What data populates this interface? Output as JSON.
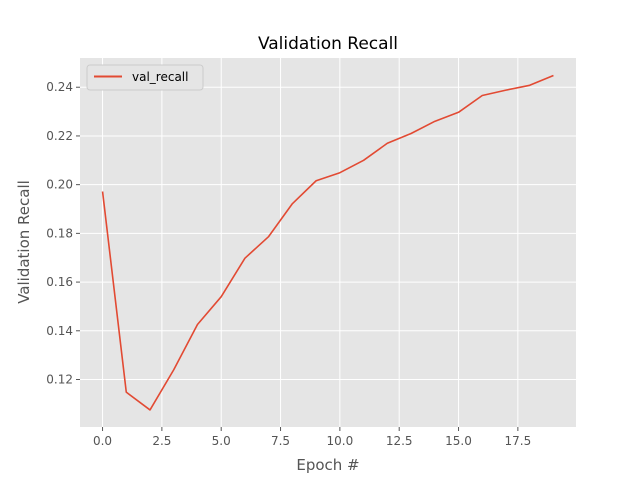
{
  "chart_data": {
    "type": "line",
    "title": "Validation Recall",
    "xlabel": "Epoch #",
    "ylabel": "Validation Recall",
    "xlim": [
      -0.95,
      19.95
    ],
    "ylim": [
      0.1005,
      0.252
    ],
    "x_ticks": [
      0.0,
      2.5,
      5.0,
      7.5,
      10.0,
      12.5,
      15.0,
      17.5
    ],
    "x_tick_labels": [
      "0.0",
      "2.5",
      "5.0",
      "7.5",
      "10.0",
      "12.5",
      "15.0",
      "17.5"
    ],
    "y_ticks": [
      0.12,
      0.14,
      0.16,
      0.18,
      0.2,
      0.22,
      0.24
    ],
    "y_tick_labels": [
      "0.12",
      "0.14",
      "0.16",
      "0.18",
      "0.20",
      "0.22",
      "0.24"
    ],
    "grid": true,
    "legend_position": "top-left",
    "background_color": "#e5e5e5",
    "series": [
      {
        "name": "val_recall",
        "color": "#e24a33",
        "x": [
          0,
          1,
          2,
          3,
          4,
          5,
          6,
          7,
          8,
          9,
          10,
          11,
          12,
          13,
          14,
          15,
          16,
          17,
          18,
          19
        ],
        "values": [
          0.1972,
          0.1148,
          0.1075,
          0.124,
          0.1426,
          0.154,
          0.1698,
          0.1787,
          0.1922,
          0.2016,
          0.2049,
          0.21,
          0.217,
          0.221,
          0.226,
          0.2297,
          0.2366,
          0.2388,
          0.2408,
          0.2448
        ]
      }
    ]
  }
}
